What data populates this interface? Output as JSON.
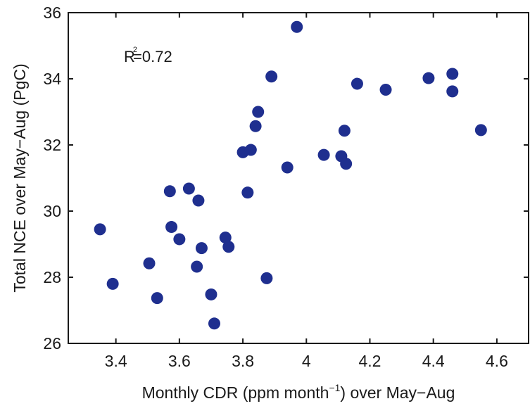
{
  "chart_data": {
    "type": "scatter",
    "title": "",
    "xlabel_main": "Monthly CDR (ppm month",
    "xlabel_sup": "−1",
    "xlabel_tail": ") over May−Aug",
    "ylabel": "Total NCE over May−Aug (PgC)",
    "annotation_base": "R",
    "annotation_sup": "2",
    "annotation_value": "=0.72",
    "xlim": [
      3.25,
      4.7
    ],
    "ylim": [
      26,
      36
    ],
    "xticks": [
      3.4,
      3.6,
      3.8,
      4.0,
      4.2,
      4.4,
      4.6
    ],
    "xtick_labels": [
      "3.4",
      "3.6",
      "3.8",
      "4",
      "4.2",
      "4.4",
      "4.6"
    ],
    "yticks": [
      26,
      28,
      30,
      32,
      34,
      36
    ],
    "ytick_labels": [
      "26",
      "28",
      "30",
      "32",
      "34",
      "36"
    ],
    "grid": false,
    "marker_color": "#1f2f8f",
    "points": [
      {
        "x": 3.35,
        "y": 29.45
      },
      {
        "x": 3.39,
        "y": 27.8
      },
      {
        "x": 3.505,
        "y": 28.42
      },
      {
        "x": 3.53,
        "y": 27.37
      },
      {
        "x": 3.57,
        "y": 30.6
      },
      {
        "x": 3.575,
        "y": 29.52
      },
      {
        "x": 3.6,
        "y": 29.15
      },
      {
        "x": 3.63,
        "y": 30.68
      },
      {
        "x": 3.655,
        "y": 28.32
      },
      {
        "x": 3.66,
        "y": 30.32
      },
      {
        "x": 3.67,
        "y": 28.88
      },
      {
        "x": 3.7,
        "y": 27.48
      },
      {
        "x": 3.71,
        "y": 26.6
      },
      {
        "x": 3.745,
        "y": 29.2
      },
      {
        "x": 3.755,
        "y": 28.92
      },
      {
        "x": 3.8,
        "y": 31.78
      },
      {
        "x": 3.815,
        "y": 30.56
      },
      {
        "x": 3.825,
        "y": 31.85
      },
      {
        "x": 3.84,
        "y": 32.57
      },
      {
        "x": 3.848,
        "y": 33.0
      },
      {
        "x": 3.875,
        "y": 27.97
      },
      {
        "x": 3.89,
        "y": 34.07
      },
      {
        "x": 3.94,
        "y": 31.32
      },
      {
        "x": 3.97,
        "y": 35.57
      },
      {
        "x": 4.055,
        "y": 31.7
      },
      {
        "x": 4.11,
        "y": 31.66
      },
      {
        "x": 4.12,
        "y": 32.43
      },
      {
        "x": 4.125,
        "y": 31.43
      },
      {
        "x": 4.16,
        "y": 33.85
      },
      {
        "x": 4.25,
        "y": 33.67
      },
      {
        "x": 4.385,
        "y": 34.02
      },
      {
        "x": 4.46,
        "y": 34.15
      },
      {
        "x": 4.46,
        "y": 33.62
      },
      {
        "x": 4.55,
        "y": 32.45
      }
    ]
  }
}
